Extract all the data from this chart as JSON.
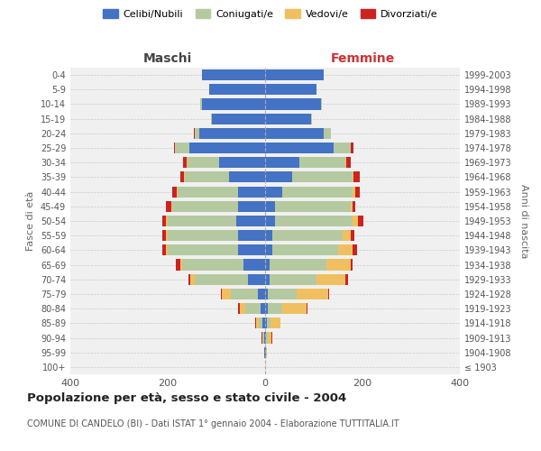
{
  "age_groups": [
    "100+",
    "95-99",
    "90-94",
    "85-89",
    "80-84",
    "75-79",
    "70-74",
    "65-69",
    "60-64",
    "55-59",
    "50-54",
    "45-49",
    "40-44",
    "35-39",
    "30-34",
    "25-29",
    "20-24",
    "15-19",
    "10-14",
    "5-9",
    "0-4"
  ],
  "birth_years": [
    "≤ 1903",
    "1904-1908",
    "1909-1913",
    "1914-1918",
    "1919-1923",
    "1924-1928",
    "1929-1933",
    "1934-1938",
    "1939-1943",
    "1944-1948",
    "1949-1953",
    "1954-1958",
    "1959-1963",
    "1964-1968",
    "1969-1973",
    "1974-1978",
    "1979-1983",
    "1984-1988",
    "1989-1993",
    "1994-1998",
    "1999-2003"
  ],
  "maschi": {
    "celibi": [
      0,
      1,
      2,
      5,
      10,
      15,
      35,
      45,
      55,
      55,
      60,
      55,
      55,
      75,
      95,
      155,
      135,
      110,
      130,
      115,
      130
    ],
    "coniugati": [
      0,
      1,
      3,
      8,
      30,
      55,
      110,
      125,
      145,
      145,
      140,
      135,
      125,
      90,
      65,
      30,
      10,
      2,
      3,
      0,
      0
    ],
    "vedovi": [
      0,
      0,
      1,
      5,
      12,
      18,
      8,
      5,
      3,
      3,
      3,
      2,
      2,
      1,
      1,
      0,
      0,
      0,
      0,
      0,
      0
    ],
    "divorziati": [
      0,
      0,
      1,
      2,
      3,
      2,
      5,
      8,
      8,
      8,
      8,
      12,
      8,
      8,
      8,
      2,
      1,
      0,
      0,
      0,
      0
    ]
  },
  "femmine": {
    "nubili": [
      0,
      1,
      2,
      3,
      5,
      5,
      10,
      10,
      15,
      15,
      20,
      20,
      35,
      55,
      70,
      140,
      120,
      95,
      115,
      105,
      120
    ],
    "coniugate": [
      0,
      0,
      3,
      8,
      30,
      60,
      95,
      115,
      135,
      145,
      160,
      155,
      145,
      125,
      95,
      35,
      15,
      2,
      2,
      0,
      0
    ],
    "vedove": [
      0,
      2,
      8,
      20,
      50,
      65,
      60,
      50,
      30,
      15,
      10,
      5,
      5,
      2,
      2,
      1,
      0,
      0,
      0,
      0,
      0
    ],
    "divorziate": [
      0,
      0,
      1,
      1,
      2,
      2,
      5,
      5,
      8,
      8,
      12,
      5,
      10,
      12,
      8,
      5,
      1,
      0,
      0,
      0,
      0
    ]
  },
  "colors": {
    "celibi": "#4472c4",
    "coniugati": "#b5c9a1",
    "vedovi": "#f0c060",
    "divorziati": "#cc2222"
  },
  "legend_labels": [
    "Celibi/Nubili",
    "Coniugati/e",
    "Vedovi/e",
    "Divorziati/e"
  ],
  "xlabel_left": "Maschi",
  "xlabel_right": "Femmine",
  "ylabel_left": "Fasce di età",
  "ylabel_right": "Anni di nascita",
  "title": "Popolazione per età, sesso e stato civile - 2004",
  "subtitle": "COMUNE DI CANDELO (BI) - Dati ISTAT 1° gennaio 2004 - Elaborazione TUTTITALIA.IT",
  "xlim": 400,
  "bg_color": "#ffffff",
  "grid_color": "#cccccc",
  "ax_bg_color": "#f0f0f0"
}
